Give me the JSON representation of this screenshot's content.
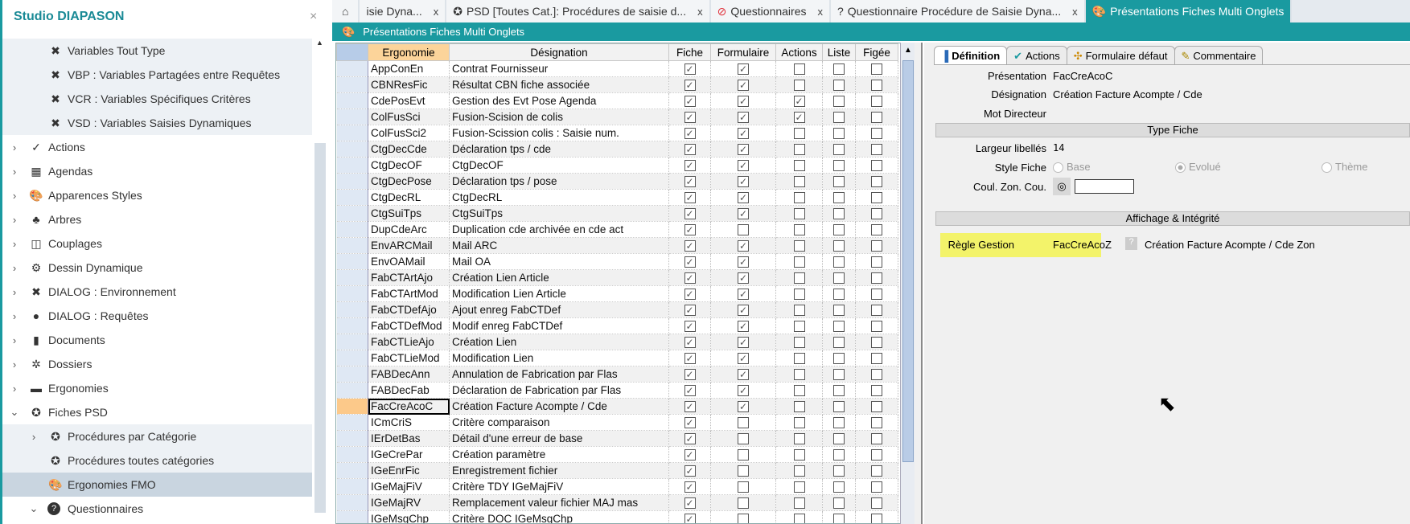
{
  "sidebar": {
    "title": "Studio DIAPASON",
    "close": "×",
    "items": [
      {
        "label": "Variables Tout Type",
        "icon": "tools-icon",
        "level": 2,
        "chev": "",
        "state": "shaded"
      },
      {
        "label": "VBP : Variables Partagées entre Requêtes",
        "icon": "tools-icon",
        "level": 2,
        "chev": "",
        "state": "shaded"
      },
      {
        "label": "VCR : Variables Spécifiques Critères",
        "icon": "tools-icon",
        "level": 2,
        "chev": "",
        "state": "shaded"
      },
      {
        "label": "VSD : Variables Saisies Dynamiques",
        "icon": "tools-icon",
        "level": 2,
        "chev": "",
        "state": "shaded"
      },
      {
        "label": "Actions",
        "icon": "check-icon",
        "level": 1,
        "chev": "›",
        "state": ""
      },
      {
        "label": "Agendas",
        "icon": "calendar-icon",
        "level": 1,
        "chev": "›",
        "state": ""
      },
      {
        "label": "Apparences Styles",
        "icon": "palette-icon",
        "level": 1,
        "chev": "›",
        "state": ""
      },
      {
        "label": "Arbres",
        "icon": "sitemap-icon",
        "level": 1,
        "chev": "›",
        "state": ""
      },
      {
        "label": "Couplages",
        "icon": "columns-icon",
        "level": 1,
        "chev": "›",
        "state": ""
      },
      {
        "label": "Dessin Dynamique",
        "icon": "gear-icon",
        "level": 1,
        "chev": "›",
        "state": ""
      },
      {
        "label": "DIALOG : Environnement",
        "icon": "tools-icon",
        "level": 1,
        "chev": "›",
        "state": ""
      },
      {
        "label": "DIALOG : Requêtes",
        "icon": "comment-icon",
        "level": 1,
        "chev": "›",
        "state": ""
      },
      {
        "label": "Documents",
        "icon": "file-icon",
        "level": 1,
        "chev": "›",
        "state": ""
      },
      {
        "label": "Dossiers",
        "icon": "dharma-icon",
        "level": 1,
        "chev": "›",
        "state": ""
      },
      {
        "label": "Ergonomies",
        "icon": "window-icon",
        "level": 1,
        "chev": "›",
        "state": ""
      },
      {
        "label": "Fiches PSD",
        "icon": "lifering-icon",
        "level": 1,
        "chev": "⌄",
        "state": ""
      },
      {
        "label": "Procédures par Catégorie",
        "icon": "lifering-icon",
        "level": 2,
        "chev": "›",
        "state": "shaded"
      },
      {
        "label": "Procédures toutes catégories",
        "icon": "lifering-icon",
        "level": 2,
        "chev": "",
        "state": "shaded"
      },
      {
        "label": "Ergonomies FMO",
        "icon": "palette-icon",
        "level": 2,
        "chev": "",
        "state": "selected"
      },
      {
        "label": "Questionnaires",
        "icon": "question-icon",
        "level": 2,
        "chev": "⌄",
        "state": ""
      }
    ]
  },
  "tabs": [
    {
      "label": "isie Dyna...",
      "icon": "",
      "close": "x",
      "active": false
    },
    {
      "label": "PSD [Toutes Cat.]: Procédures de saisie d...",
      "icon": "lifering-icon",
      "close": "x",
      "active": false
    },
    {
      "label": "Questionnaires",
      "icon": "ban-icon",
      "close": "x",
      "active": false
    },
    {
      "label": "Questionnaire Procédure de Saisie Dyna...",
      "icon": "question-icon",
      "close": "x",
      "active": false
    },
    {
      "label": "Présentations Fiches Multi Onglets",
      "icon": "palette-icon",
      "close": "",
      "active": true
    }
  ],
  "subheader": {
    "title": "Présentations Fiches Multi Onglets"
  },
  "grid": {
    "columns": [
      "Ergonomie",
      "Désignation",
      "Fiche",
      "Formulaire",
      "Actions",
      "Liste",
      "Figée"
    ],
    "rows": [
      [
        "AppConEn",
        "Contrat Fournisseur",
        1,
        1,
        0,
        0,
        0
      ],
      [
        "CBNResFic",
        "Résultat CBN fiche associée",
        1,
        1,
        0,
        0,
        0
      ],
      [
        "CdePosEvt",
        "Gestion des Evt Pose Agenda",
        1,
        1,
        1,
        0,
        0
      ],
      [
        "ColFusSci",
        "Fusion-Scision de colis",
        1,
        1,
        1,
        0,
        0
      ],
      [
        "ColFusSci2",
        "Fusion-Scission colis : Saisie num.",
        1,
        1,
        0,
        0,
        0
      ],
      [
        "CtgDecCde",
        "Déclaration tps / cde",
        1,
        1,
        0,
        0,
        0
      ],
      [
        "CtgDecOF",
        "CtgDecOF",
        1,
        1,
        0,
        0,
        0
      ],
      [
        "CtgDecPose",
        "Déclaration tps / pose",
        1,
        1,
        0,
        0,
        0
      ],
      [
        "CtgDecRL",
        "CtgDecRL",
        1,
        1,
        0,
        0,
        0
      ],
      [
        "CtgSuiTps",
        "CtgSuiTps",
        1,
        1,
        0,
        0,
        0
      ],
      [
        "DupCdeArc",
        "Duplication cde archivée en cde act",
        1,
        0,
        0,
        0,
        0
      ],
      [
        "EnvARCMail",
        "Mail ARC",
        1,
        1,
        0,
        0,
        0
      ],
      [
        "EnvOAMail",
        "Mail OA",
        1,
        1,
        0,
        0,
        0
      ],
      [
        "FabCTArtAjo",
        "Création Lien Article",
        1,
        1,
        0,
        0,
        0
      ],
      [
        "FabCTArtMod",
        "Modification Lien Article",
        1,
        1,
        0,
        0,
        0
      ],
      [
        "FabCTDefAjo",
        "Ajout enreg FabCTDef",
        1,
        1,
        0,
        0,
        0
      ],
      [
        "FabCTDefMod",
        "Modif enreg FabCTDef",
        1,
        1,
        0,
        0,
        0
      ],
      [
        "FabCTLieAjo",
        "Création Lien",
        1,
        1,
        0,
        0,
        0
      ],
      [
        "FabCTLieMod",
        "Modification Lien",
        1,
        1,
        0,
        0,
        0
      ],
      [
        "FABDecAnn",
        "Annulation  de Fabrication par Flas",
        1,
        1,
        0,
        0,
        0
      ],
      [
        "FABDecFab",
        "Déclaration de Fabrication par Flas",
        1,
        1,
        0,
        0,
        0
      ],
      [
        "FacCreAcoC",
        "Création Facture Acompte / Cde",
        1,
        1,
        0,
        0,
        0
      ],
      [
        "ICmCriS",
        "Critère comparaison",
        1,
        0,
        0,
        0,
        0
      ],
      [
        "IErDetBas",
        "Détail d'une erreur de base",
        1,
        0,
        0,
        0,
        0
      ],
      [
        "IGeCrePar",
        "Création paramètre",
        1,
        0,
        0,
        0,
        0
      ],
      [
        "IGeEnrFic",
        "Enregistrement fichier",
        1,
        0,
        0,
        0,
        0
      ],
      [
        "IGeMajFiV",
        "Critère TDY IGeMajFiV",
        1,
        0,
        0,
        0,
        0
      ],
      [
        "IGeMajRV",
        "Remplacement valeur fichier MAJ mas",
        1,
        0,
        0,
        0,
        0
      ],
      [
        "IGeMsgChp",
        "Critère DOC IGeMsgChp",
        1,
        0,
        0,
        0,
        0
      ]
    ],
    "current_row": "FacCreAcoC"
  },
  "panel": {
    "tabs": [
      "Définition",
      "Actions",
      "Formulaire défaut",
      "Commentaire"
    ],
    "active_tab": "Définition",
    "presentation_label": "Présentation",
    "presentation": "FacCreAcoC",
    "designation_label": "Désignation",
    "designation": "Création Facture Acompte / Cde",
    "mot_label": "Mot Directeur",
    "mot": "",
    "section_type": "Type Fiche",
    "largeur_label": "Largeur libellés",
    "largeur": "14",
    "style_label": "Style Fiche",
    "style_options": [
      "Base",
      "Evolué",
      "Thème"
    ],
    "style_selected": "Evolué",
    "coul_label": "Coul. Zon. Cou.",
    "section_aff": "Affichage & Intégrité",
    "regle_label": "Règle Gestion",
    "regle": "FacCreAcoZ",
    "regle_desc": "Création Facture Acompte  / Cde Zon",
    "highlight_color": "#f3f36a"
  },
  "colors": {
    "accent": "#1a9aa0",
    "selected_header": "#fcd49a"
  }
}
